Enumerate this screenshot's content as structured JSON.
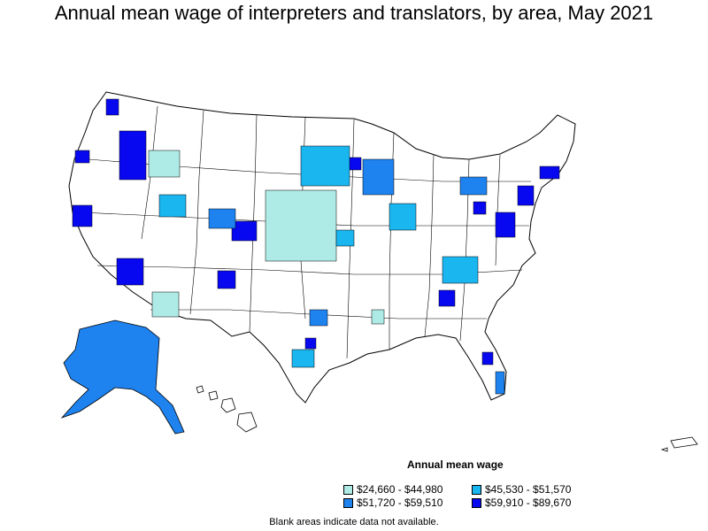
{
  "title": "Annual mean wage of interpreters and translators, by area, May 2021",
  "legend": {
    "title": "Annual mean wage",
    "items": [
      {
        "label": "$24,660 - $44,980",
        "color": "#aeeae6"
      },
      {
        "label": "$45,530 - $51,570",
        "color": "#1ab6f0"
      },
      {
        "label": "$51,720 - $59,510",
        "color": "#1e82ef"
      },
      {
        "label": "$59,910 - $89,670",
        "color": "#0808f0"
      }
    ]
  },
  "note": "Blank areas indicate data not available.",
  "colors": {
    "outline": "#000000",
    "land": "#ffffff"
  }
}
